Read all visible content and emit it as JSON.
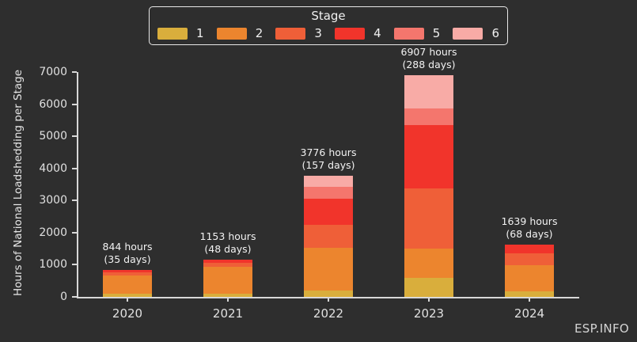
{
  "background": "#2e2e2e",
  "watermark": "ESP.INFO",
  "legend": {
    "title": "Stage",
    "entries": [
      {
        "label": "1",
        "color": "#d9ae3c"
      },
      {
        "label": "2",
        "color": "#ec852e"
      },
      {
        "label": "3",
        "color": "#ef5f38"
      },
      {
        "label": "4",
        "color": "#f1342b"
      },
      {
        "label": "5",
        "color": "#f4766d"
      },
      {
        "label": "6",
        "color": "#f8aba6"
      }
    ]
  },
  "chart_data": {
    "type": "bar",
    "stacked": true,
    "title": "",
    "xlabel": "",
    "ylabel": "Hours of National Loadshedding per Stage",
    "ylim": [
      0,
      7000
    ],
    "yticks": [
      0,
      1000,
      2000,
      3000,
      4000,
      5000,
      6000,
      7000
    ],
    "grid": false,
    "legend_position": "top",
    "categories": [
      "2020",
      "2021",
      "2022",
      "2023",
      "2024"
    ],
    "totals": [
      844,
      1153,
      3776,
      6907,
      1639
    ],
    "annotations": [
      {
        "line1": "844 hours",
        "line2": "(35 days)"
      },
      {
        "line1": "1153 hours",
        "line2": "(48 days)"
      },
      {
        "line1": "3776 hours",
        "line2": "(157 days)"
      },
      {
        "line1": "6907 hours",
        "line2": "(288 days)"
      },
      {
        "line1": "1639 hours",
        "line2": "(68 days)"
      }
    ],
    "series": [
      {
        "name": "1",
        "color": "#d9ae3c",
        "values": [
          110,
          110,
          200,
          590,
          180
        ]
      },
      {
        "name": "2",
        "color": "#ec852e",
        "values": [
          560,
          830,
          1330,
          920,
          800
        ]
      },
      {
        "name": "3",
        "color": "#ef5f38",
        "values": [
          95,
          110,
          710,
          1860,
          380
        ]
      },
      {
        "name": "4",
        "color": "#f1342b",
        "values": [
          79,
          103,
          820,
          1990,
          279
        ]
      },
      {
        "name": "5",
        "color": "#f4766d",
        "values": [
          0,
          0,
          360,
          517,
          0
        ]
      },
      {
        "name": "6",
        "color": "#f8aba6",
        "values": [
          0,
          0,
          356,
          1030,
          0
        ]
      }
    ]
  }
}
